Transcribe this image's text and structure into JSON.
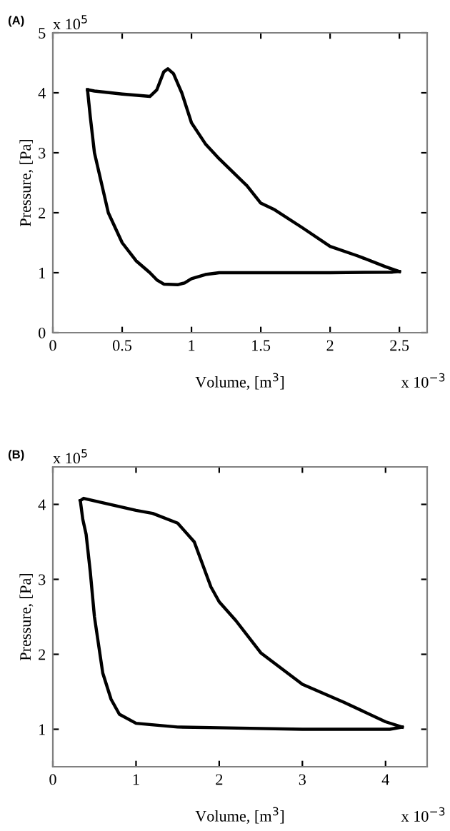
{
  "chart_data": [
    {
      "type": "line",
      "xlabel": "Volume, [m$^{3}$]",
      "ylabel": "Pressure, [Pa]",
      "annotations": [
        "(A)",
        "x 10$^{5}$",
        "x 10$^{−3}$"
      ],
      "xlim": [
        0,
        2.7
      ],
      "ylim": [
        0,
        5
      ],
      "xticks": [
        0,
        0.5,
        1,
        1.5,
        2,
        2.5
      ],
      "yticks": [
        0,
        1,
        2,
        3,
        4,
        5
      ],
      "grid": false,
      "legend": false,
      "line_style": "solid",
      "marker": "none",
      "series": [
        {
          "color": "#000000",
          "x": [
            0.25,
            0.3,
            0.5,
            0.7,
            0.75,
            0.8,
            0.83,
            0.87,
            0.93,
            1.0,
            1.1,
            1.2,
            1.4,
            1.5,
            1.6,
            1.8,
            2.0,
            2.2,
            2.4,
            2.5
          ],
          "values": [
            4.05,
            4.03,
            3.98,
            3.94,
            4.05,
            4.35,
            4.4,
            4.32,
            4.0,
            3.5,
            3.15,
            2.9,
            2.45,
            2.16,
            2.05,
            1.75,
            1.44,
            1.28,
            1.1,
            1.02
          ]
        },
        {
          "color": "#000000",
          "x": [
            0.25,
            0.27,
            0.3,
            0.35,
            0.4,
            0.5,
            0.6,
            0.7,
            0.75,
            0.8,
            0.9,
            0.95,
            1.0,
            1.1,
            1.2,
            1.5,
            2.0,
            2.45,
            2.5
          ],
          "values": [
            4.05,
            3.6,
            3.0,
            2.5,
            2.0,
            1.5,
            1.2,
            1.0,
            0.88,
            0.81,
            0.8,
            0.83,
            0.9,
            0.97,
            1.0,
            1.0,
            1.0,
            1.01,
            1.02
          ]
        }
      ]
    },
    {
      "type": "line",
      "xlabel": "Volume, [m$^{3}$]",
      "ylabel": "Pressure, [Pa]",
      "annotations": [
        "(B)",
        "x 10$^{5}$",
        "x 10$^{−3}$"
      ],
      "xlim": [
        0,
        4.5
      ],
      "ylim": [
        0.5,
        4.5
      ],
      "xticks": [
        0,
        1,
        2,
        3,
        4
      ],
      "yticks": [
        1,
        2,
        3,
        4
      ],
      "grid": false,
      "legend": false,
      "line_style": "solid",
      "marker": "none",
      "series": [
        {
          "color": "#000000",
          "x": [
            0.33,
            0.37,
            1.0,
            1.2,
            1.5,
            1.7,
            1.8,
            1.9,
            2.0,
            2.2,
            2.5,
            3.0,
            3.5,
            4.0,
            4.2
          ],
          "values": [
            4.05,
            4.08,
            3.92,
            3.88,
            3.75,
            3.5,
            3.2,
            2.9,
            2.7,
            2.45,
            2.02,
            1.6,
            1.36,
            1.1,
            1.03
          ]
        },
        {
          "color": "#000000",
          "x": [
            0.33,
            0.36,
            0.4,
            0.45,
            0.5,
            0.6,
            0.7,
            0.8,
            1.0,
            1.5,
            2.0,
            3.0,
            4.05,
            4.2
          ],
          "values": [
            4.05,
            3.8,
            3.6,
            3.1,
            2.5,
            1.75,
            1.4,
            1.2,
            1.08,
            1.03,
            1.02,
            1.0,
            1.0,
            1.03
          ]
        }
      ]
    }
  ]
}
